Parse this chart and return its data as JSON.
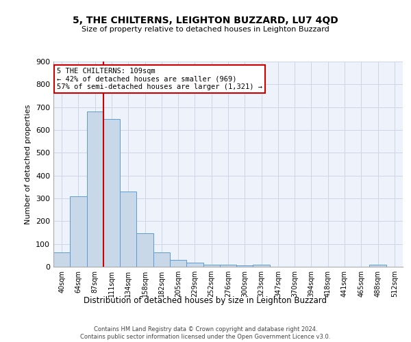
{
  "title": "5, THE CHILTERNS, LEIGHTON BUZZARD, LU7 4QD",
  "subtitle": "Size of property relative to detached houses in Leighton Buzzard",
  "xlabel": "Distribution of detached houses by size in Leighton Buzzard",
  "ylabel": "Number of detached properties",
  "footer": "Contains HM Land Registry data © Crown copyright and database right 2024.\nContains public sector information licensed under the Open Government Licence v3.0.",
  "annotation_line1": "5 THE CHILTERNS: 109sqm",
  "annotation_line2": "← 42% of detached houses are smaller (969)",
  "annotation_line3": "57% of semi-detached houses are larger (1,321) →",
  "bar_color": "#c8d8e8",
  "bar_edge_color": "#5b9bd5",
  "vline_color": "#cc0000",
  "annotation_box_color": "#ffffff",
  "annotation_box_edge": "#cc0000",
  "categories": [
    "40sqm",
    "64sqm",
    "87sqm",
    "111sqm",
    "134sqm",
    "158sqm",
    "182sqm",
    "205sqm",
    "229sqm",
    "252sqm",
    "276sqm",
    "300sqm",
    "323sqm",
    "347sqm",
    "370sqm",
    "394sqm",
    "418sqm",
    "441sqm",
    "465sqm",
    "488sqm",
    "512sqm"
  ],
  "values": [
    62,
    310,
    680,
    648,
    330,
    148,
    62,
    30,
    18,
    10,
    8,
    5,
    8,
    0,
    0,
    0,
    0,
    0,
    0,
    8,
    0
  ],
  "ylim": [
    0,
    900
  ],
  "yticks": [
    0,
    100,
    200,
    300,
    400,
    500,
    600,
    700,
    800,
    900
  ],
  "vline_x": 2.5,
  "grid_color": "#ccd6e8",
  "bg_color": "#eef2fa"
}
